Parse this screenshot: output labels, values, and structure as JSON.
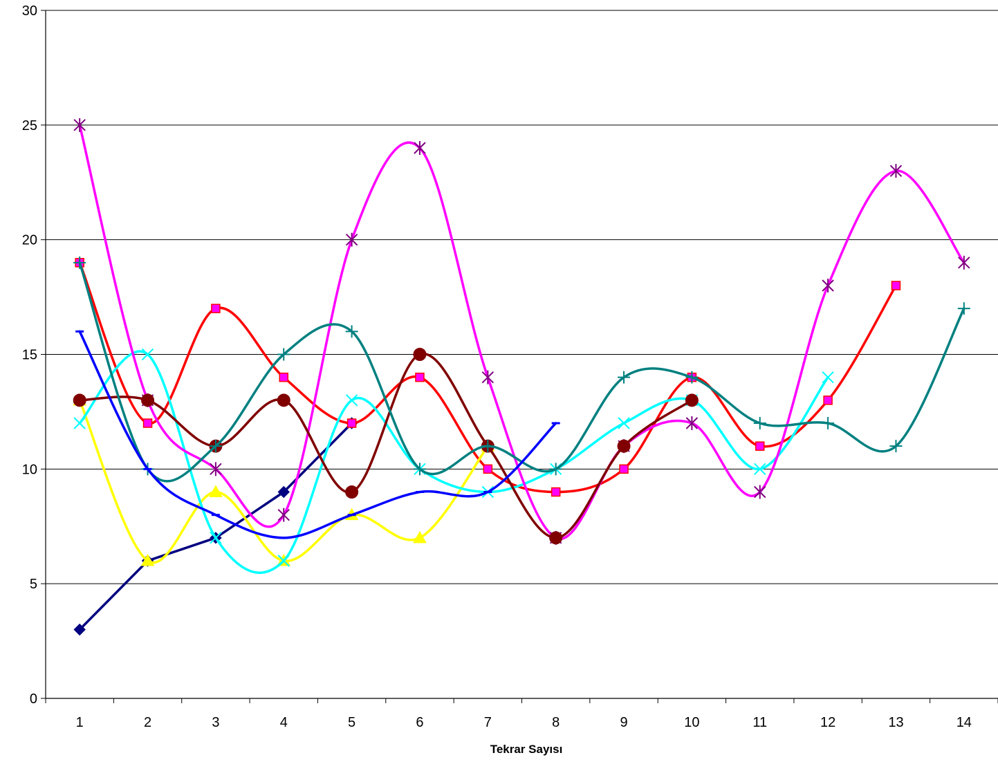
{
  "chart_data": {
    "type": "line",
    "title": "",
    "xlabel": "Tekrar Sayısı",
    "ylabel": "",
    "categories": [
      "1",
      "2",
      "3",
      "4",
      "5",
      "6",
      "7",
      "8",
      "9",
      "10",
      "11",
      "12",
      "13",
      "14"
    ],
    "ylim": [
      0,
      30
    ],
    "yticks": [
      0,
      5,
      10,
      15,
      20,
      25,
      30
    ],
    "grid": true,
    "smooth": true,
    "series": [
      {
        "color": "#000080",
        "marker": "diamond",
        "values": [
          3,
          6,
          7,
          9,
          12,
          null,
          null,
          null,
          null,
          null,
          null,
          null,
          null,
          null
        ]
      },
      {
        "color": "#FF0000",
        "marker": "square",
        "marker_fill": "#FF00FF",
        "values": [
          19,
          12,
          17,
          14,
          12,
          14,
          10,
          9,
          10,
          14,
          11,
          13,
          18,
          null
        ]
      },
      {
        "color": "#FFFF00",
        "marker": "triangle",
        "values": [
          13,
          6,
          9,
          6,
          8,
          7,
          11,
          null,
          null,
          null,
          null,
          null,
          null,
          null
        ]
      },
      {
        "color": "#00FFFF",
        "marker": "x",
        "values": [
          12,
          15,
          7,
          6,
          13,
          10,
          9,
          10,
          12,
          13,
          10,
          14,
          null,
          null
        ]
      },
      {
        "color": "#FF00FF",
        "marker": "star",
        "marker_color": "#800080",
        "values": [
          25,
          13,
          10,
          8,
          20,
          24,
          14,
          7,
          11,
          12,
          9,
          18,
          23,
          19
        ]
      },
      {
        "color": "#800000",
        "marker": "circle",
        "values": [
          13,
          13,
          11,
          13,
          9,
          15,
          11,
          7,
          11,
          13,
          null,
          null,
          null,
          null
        ]
      },
      {
        "color": "#008080",
        "marker": "plus",
        "values": [
          19,
          10,
          11,
          15,
          16,
          10,
          11,
          10,
          14,
          14,
          12,
          12,
          11,
          17
        ]
      },
      {
        "color": "#0000FF",
        "marker": "dash",
        "values": [
          16,
          10,
          8,
          7,
          8,
          9,
          9,
          12,
          null,
          null,
          null,
          null,
          null,
          null
        ]
      }
    ]
  }
}
